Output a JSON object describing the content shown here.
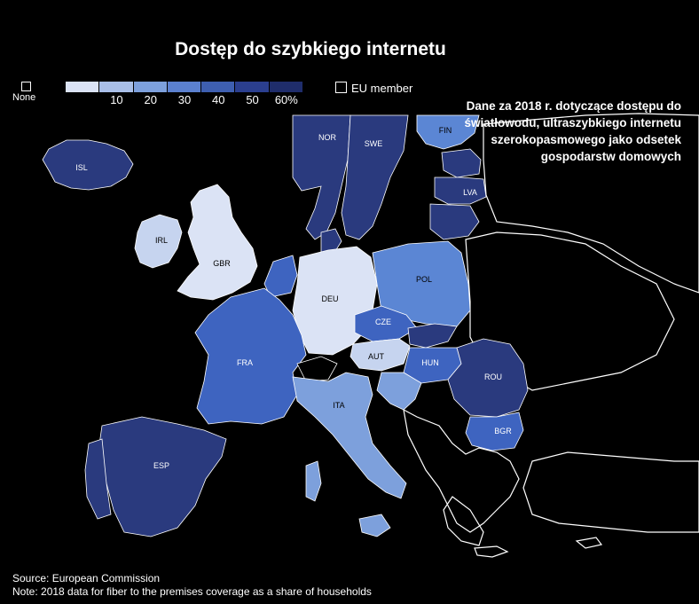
{
  "title": "Dostęp do szybkiego internetu",
  "legend": {
    "none_label": "None",
    "scale_ticks": [
      "10",
      "20",
      "30",
      "40",
      "50",
      "60%"
    ],
    "scale_colors": [
      "#dbe3f5",
      "#a9bfe8",
      "#7da0dc",
      "#5b80cf",
      "#3e5fb0",
      "#2b3f8f",
      "#1f2d6b"
    ],
    "eu_label": "EU member"
  },
  "note_box": "Dane za 2018 r. dotyczące dostępu do światłowodu, ultraszybkiego internetu szerokopasmowego jako odsetek gospodarstw domowych",
  "countries": [
    {
      "code": "ISL",
      "color": "#2a3a7e"
    },
    {
      "code": "IRL",
      "color": "#c6d4ef"
    },
    {
      "code": "GBR",
      "color": "#dbe3f5"
    },
    {
      "code": "NOR",
      "color": "#2a3a7e"
    },
    {
      "code": "SWE",
      "color": "#2a3a7e"
    },
    {
      "code": "FIN",
      "color": "#5b86d4"
    },
    {
      "code": "LVA",
      "color": "#2a3a7e"
    },
    {
      "code": "DEU",
      "color": "#dbe3f5"
    },
    {
      "code": "POL",
      "color": "#5b86d4"
    },
    {
      "code": "CZE",
      "color": "#3e64c0"
    },
    {
      "code": "FRA",
      "color": "#3e64c0"
    },
    {
      "code": "AUT",
      "color": "#c6d4ef"
    },
    {
      "code": "HUN",
      "color": "#3e64c0"
    },
    {
      "code": "ROU",
      "color": "#2a3a7e"
    },
    {
      "code": "ITA",
      "color": "#7da0dc"
    },
    {
      "code": "BGR",
      "color": "#3e64c0"
    },
    {
      "code": "ESP",
      "color": "#2a3a7e"
    }
  ],
  "source": "Source: European Commission",
  "note": "Note: 2018 data for fiber to the premises coverage as a share of households"
}
